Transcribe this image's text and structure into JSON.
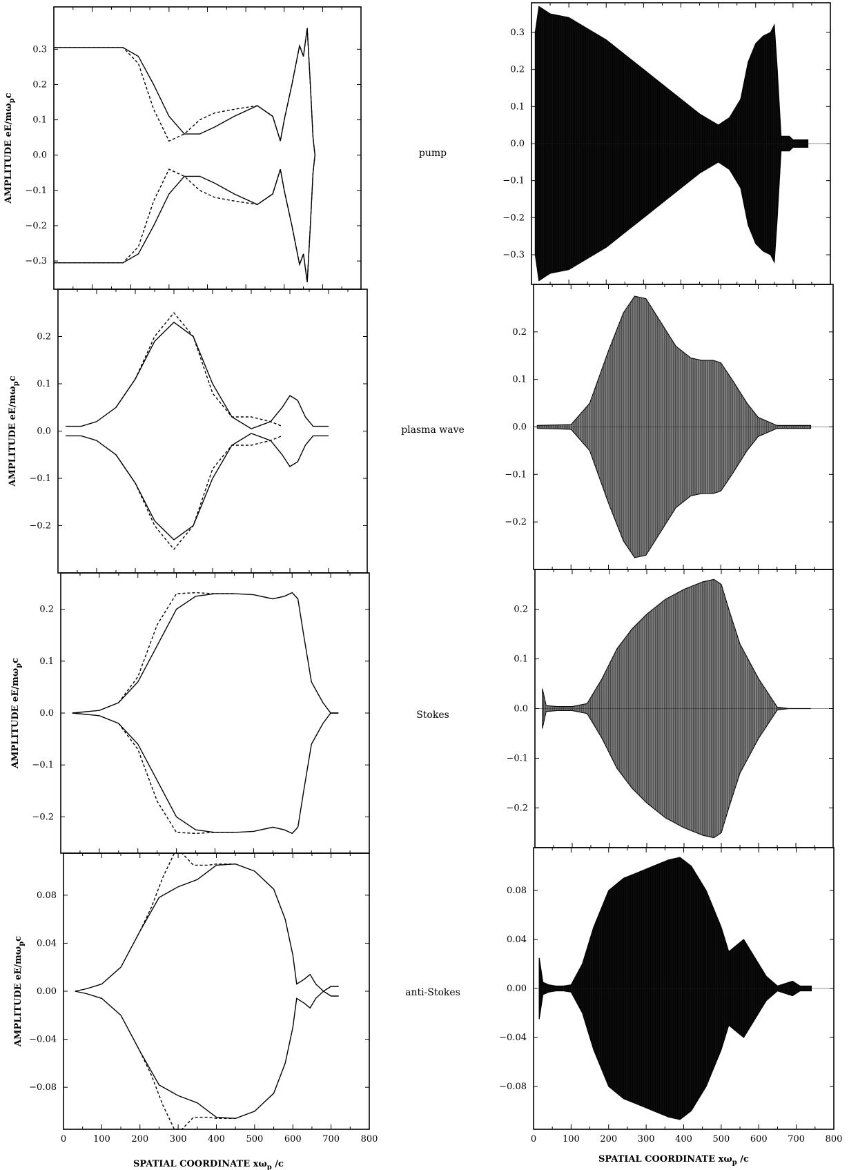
{
  "y_axis_label": "AMPLITUDE eE/mω",
  "y_axis_label_sub": "p",
  "y_axis_label_tail": "c",
  "x_axis_label": "SPATIAL COORDINATE xω",
  "x_axis_label_sub": "p",
  "x_axis_label_tail": " /c",
  "rows": [
    {
      "label": "pump"
    },
    {
      "label": "plasma wave"
    },
    {
      "label": "Stokes"
    },
    {
      "label": "anti-Stokes"
    }
  ],
  "chart_data": [
    {
      "type": "line",
      "row": "pump",
      "column": "left",
      "xlim": [
        0,
        800
      ],
      "ylim": [
        -0.38,
        0.42
      ],
      "yticks": [
        "-0.3",
        "-0.2",
        "-0.1",
        "0.0",
        "0.1",
        "0.2",
        "0.3"
      ],
      "series": [
        {
          "style": "solid",
          "x": [
            0,
            180,
            220,
            260,
            300,
            340,
            380,
            420,
            470,
            530,
            570,
            590,
            600,
            620,
            640,
            650,
            660,
            668,
            675,
            680
          ],
          "y": [
            0.305,
            0.305,
            0.28,
            0.2,
            0.11,
            0.06,
            0.06,
            0.08,
            0.11,
            0.14,
            0.11,
            0.04,
            0.1,
            0.2,
            0.31,
            0.28,
            0.36,
            0.2,
            0.05,
            0.0
          ]
        },
        {
          "style": "dashed",
          "x": [
            0,
            180,
            220,
            260,
            300,
            340,
            380,
            420,
            470,
            530,
            570,
            590,
            600,
            620,
            640,
            650,
            660,
            668,
            675,
            680
          ],
          "y": [
            0.305,
            0.305,
            0.26,
            0.13,
            0.04,
            0.06,
            0.1,
            0.12,
            0.13,
            0.14,
            0.11,
            0.04,
            0.1,
            0.2,
            0.31,
            0.28,
            0.36,
            0.2,
            0.05,
            0.0
          ]
        }
      ]
    },
    {
      "type": "line",
      "row": "plasma wave",
      "column": "left",
      "xlim": [
        0,
        800
      ],
      "ylim": [
        -0.3,
        0.3
      ],
      "yticks": [
        "-0.2",
        "-0.1",
        "0.0",
        "0.1",
        "0.2"
      ],
      "series": [
        {
          "style": "solid",
          "x": [
            20,
            60,
            100,
            150,
            200,
            250,
            300,
            350,
            400,
            450,
            500,
            550,
            580,
            600,
            620,
            640,
            660,
            700
          ],
          "y": [
            0.01,
            0.01,
            0.02,
            0.05,
            0.11,
            0.19,
            0.23,
            0.2,
            0.1,
            0.03,
            0.005,
            0.02,
            0.05,
            0.075,
            0.065,
            0.03,
            0.01,
            0.01
          ]
        },
        {
          "style": "dashed",
          "x": [
            150,
            200,
            250,
            300,
            350,
            400,
            450,
            500,
            550,
            580
          ],
          "y": [
            0.05,
            0.11,
            0.2,
            0.25,
            0.2,
            0.08,
            0.03,
            0.03,
            0.02,
            0.01
          ]
        }
      ]
    },
    {
      "type": "line",
      "row": "Stokes",
      "column": "left",
      "xlim": [
        0,
        800
      ],
      "ylim": [
        -0.27,
        0.27
      ],
      "yticks": [
        "-0.2",
        "-0.1",
        "0.0",
        "0.1",
        "0.2"
      ],
      "series": [
        {
          "style": "solid",
          "x": [
            30,
            100,
            150,
            200,
            250,
            300,
            350,
            400,
            450,
            500,
            550,
            580,
            600,
            615,
            630,
            650,
            680,
            700,
            720
          ],
          "y": [
            0.0,
            0.005,
            0.02,
            0.06,
            0.13,
            0.2,
            0.225,
            0.23,
            0.23,
            0.228,
            0.22,
            0.225,
            0.232,
            0.22,
            0.15,
            0.06,
            0.02,
            0.0,
            0.0
          ]
        },
        {
          "style": "dashed",
          "x": [
            150,
            200,
            250,
            300,
            350,
            400,
            450
          ],
          "y": [
            0.02,
            0.07,
            0.17,
            0.23,
            0.232,
            0.23,
            0.23
          ]
        }
      ]
    },
    {
      "type": "line",
      "row": "anti-Stokes",
      "column": "left",
      "xlim": [
        0,
        800
      ],
      "ylim": [
        -0.115,
        0.115
      ],
      "yticks": [
        "-0.08",
        "-0.04",
        "0.00",
        "0.04",
        "0.08"
      ],
      "series": [
        {
          "style": "solid",
          "x": [
            30,
            60,
            100,
            150,
            200,
            250,
            300,
            350,
            400,
            450,
            500,
            550,
            580,
            600,
            610,
            630,
            645,
            660,
            680,
            700,
            720
          ],
          "y": [
            0.0,
            0.002,
            0.006,
            0.02,
            0.05,
            0.078,
            0.087,
            0.093,
            0.105,
            0.106,
            0.1,
            0.085,
            0.06,
            0.03,
            0.006,
            0.01,
            0.014,
            0.006,
            0.0,
            0.004,
            0.004
          ]
        },
        {
          "style": "dashed",
          "x": [
            200,
            230,
            260,
            290,
            310,
            340,
            380,
            400,
            450
          ],
          "y": [
            0.05,
            0.07,
            0.095,
            0.115,
            0.115,
            0.105,
            0.105,
            0.106,
            0.106
          ]
        }
      ]
    },
    {
      "type": "area",
      "row": "pump",
      "column": "right",
      "xlim": [
        0,
        800
      ],
      "ylim": [
        -0.38,
        0.38
      ],
      "yticks": [
        "-0.3",
        "-0.2",
        "-0.1",
        "0.0",
        "0.1",
        "0.2",
        "0.3"
      ],
      "envelope": {
        "x": [
          10,
          20,
          50,
          100,
          150,
          200,
          250,
          300,
          350,
          400,
          450,
          500,
          530,
          560,
          580,
          600,
          620,
          640,
          650,
          658,
          668,
          690,
          700,
          740
        ],
        "y": [
          0.3,
          0.37,
          0.35,
          0.34,
          0.31,
          0.28,
          0.24,
          0.2,
          0.16,
          0.12,
          0.08,
          0.05,
          0.07,
          0.12,
          0.22,
          0.27,
          0.29,
          0.3,
          0.32,
          0.2,
          0.02,
          0.02,
          0.01,
          0.01
        ]
      }
    },
    {
      "type": "area",
      "row": "plasma wave",
      "column": "right",
      "xlim": [
        0,
        800
      ],
      "ylim": [
        -0.3,
        0.3
      ],
      "yticks": [
        "-0.2",
        "-0.1",
        "0.0",
        "0.1",
        "0.2"
      ],
      "envelope": {
        "x": [
          10,
          100,
          150,
          200,
          240,
          270,
          300,
          340,
          380,
          420,
          450,
          480,
          500,
          530,
          570,
          600,
          650,
          740
        ],
        "y": [
          0.003,
          0.005,
          0.05,
          0.16,
          0.24,
          0.275,
          0.27,
          0.22,
          0.17,
          0.145,
          0.14,
          0.14,
          0.135,
          0.1,
          0.05,
          0.02,
          0.003,
          0.003
        ]
      }
    },
    {
      "type": "area",
      "row": "Stokes",
      "column": "right",
      "xlim": [
        0,
        800
      ],
      "ylim": [
        -0.28,
        0.28
      ],
      "yticks": [
        "-0.2",
        "-0.1",
        "0.0",
        "0.1",
        "0.2"
      ],
      "envelope": {
        "x": [
          20,
          30,
          60,
          100,
          140,
          180,
          220,
          260,
          300,
          350,
          400,
          450,
          480,
          500,
          520,
          550,
          600,
          650,
          680,
          740
        ],
        "y": [
          0.04,
          0.006,
          0.004,
          0.004,
          0.01,
          0.06,
          0.12,
          0.16,
          0.19,
          0.22,
          0.24,
          0.255,
          0.26,
          0.25,
          0.2,
          0.13,
          0.06,
          0.003,
          0.0,
          0.0
        ]
      }
    },
    {
      "type": "area",
      "row": "anti-Stokes",
      "column": "right",
      "xlim": [
        0,
        800
      ],
      "ylim": [
        -0.115,
        0.115
      ],
      "yticks": [
        "-0.08",
        "-0.04",
        "0.00",
        "0.04",
        "0.08"
      ],
      "envelope": {
        "x": [
          15,
          25,
          40,
          60,
          80,
          100,
          130,
          160,
          200,
          240,
          280,
          320,
          360,
          390,
          420,
          460,
          500,
          520,
          540,
          560,
          580,
          620,
          650,
          670,
          690,
          710,
          740
        ],
        "y": [
          0.025,
          0.005,
          0.003,
          0.002,
          0.002,
          0.003,
          0.02,
          0.05,
          0.08,
          0.09,
          0.095,
          0.1,
          0.105,
          0.107,
          0.1,
          0.08,
          0.05,
          0.03,
          0.035,
          0.04,
          0.03,
          0.01,
          0.002,
          0.004,
          0.006,
          0.002,
          0.002
        ]
      }
    }
  ]
}
